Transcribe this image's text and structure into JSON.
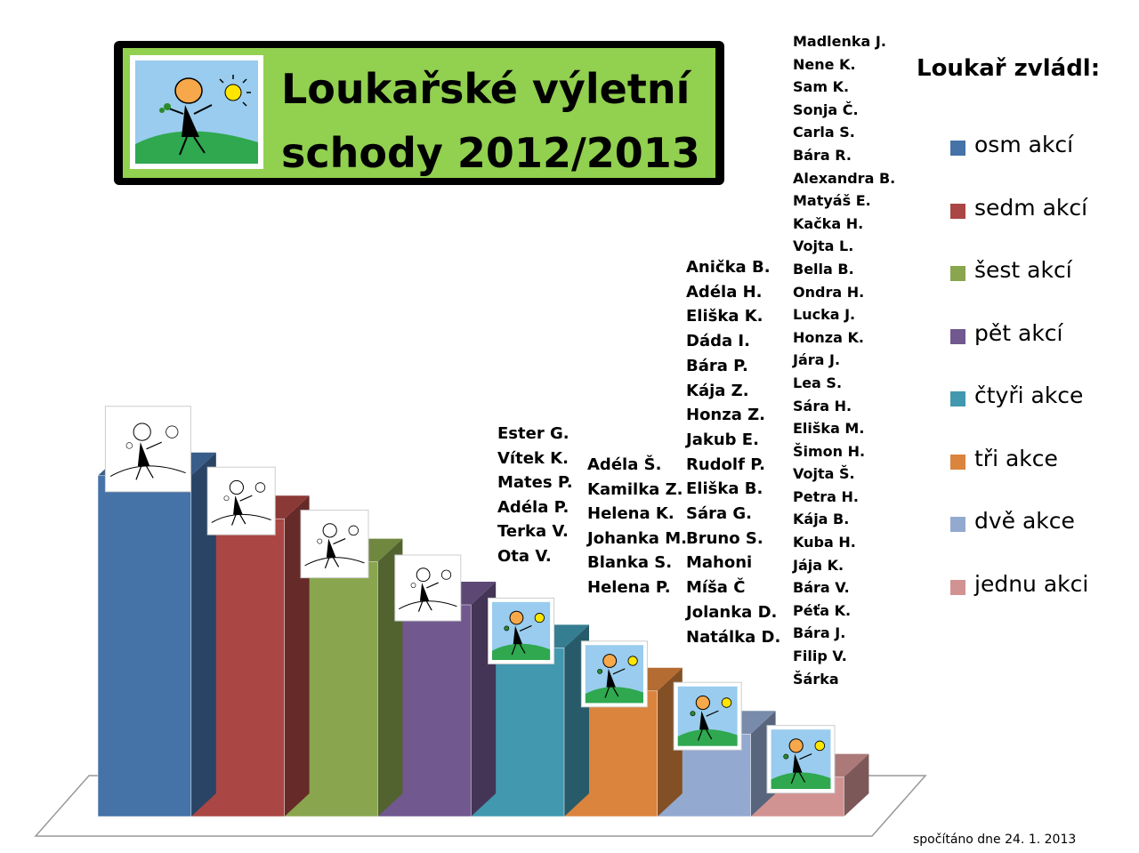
{
  "header": {
    "title_line1": "Loukařské výletní",
    "title_line2": "schody 2012/2013"
  },
  "legend": {
    "title": "Loukař zvládl:",
    "items": [
      {
        "label": "osm akcí",
        "color": "#4572a7"
      },
      {
        "label": "sedm akcí",
        "color": "#aa4643"
      },
      {
        "label": "šest akcí",
        "color": "#89a54e"
      },
      {
        "label": "pět akcí",
        "color": "#71588f"
      },
      {
        "label": "čtyři akce",
        "color": "#4198af"
      },
      {
        "label": "tři akce",
        "color": "#db843d"
      },
      {
        "label": "dvě akce",
        "color": "#93a9cf"
      },
      {
        "label": "jednu akci",
        "color": "#d19392"
      }
    ]
  },
  "footnote": "spočítáno dne 24. 1. 2013",
  "chart_data": {
    "type": "bar",
    "categories": [
      "osm akcí",
      "sedm akcí",
      "šest akcí",
      "pět akcí",
      "čtyři akce",
      "tři akce",
      "dvě akce",
      "jednu akci"
    ],
    "values": [
      8,
      7,
      6,
      5,
      4,
      3,
      2,
      1
    ],
    "colors": [
      "#4572a7",
      "#aa4643",
      "#89a54e",
      "#71588f",
      "#4198af",
      "#db843d",
      "#93a9cf",
      "#d19392"
    ],
    "chart_style": "3d-stairs",
    "icon_style": [
      "outline",
      "outline",
      "outline",
      "outline",
      "color",
      "color",
      "color",
      "color"
    ],
    "legend_position": "right"
  },
  "names": {
    "ctyri_akce": [
      "Ester G.",
      "Vítek K.",
      "Mates P.",
      "Adéla P.",
      "Terka V.",
      "Ota V."
    ],
    "tri_akce": [
      "Adéla Š.",
      "Kamilka Z.",
      "Helena K.",
      "Johanka M.",
      "Blanka S.",
      "Helena P."
    ],
    "dve_akce": [
      "Anička B.",
      "Adéla H.",
      "Eliška K.",
      "Dáda I.",
      "Bára P.",
      "Kája Z.",
      "Honza Z.",
      "Jakub E.",
      "Rudolf P.",
      "Eliška B.",
      "Sára G.",
      "Bruno S.",
      "Mahoni",
      "Míša Č",
      "Jolanka D.",
      "Natálka D."
    ],
    "jednu_akci": [
      "Madlenka J.",
      "Nene K.",
      "Sam K.",
      "Sonja Č.",
      "Carla S.",
      "Bára R.",
      "Alexandra B.",
      "Matyáš E.",
      "Kačka H.",
      "Vojta L.",
      "Bella B.",
      "Ondra H.",
      "Lucka J.",
      "Honza K.",
      "Jára J.",
      "Lea S.",
      "Sára H.",
      "Eliška M.",
      "Šimon H.",
      "Vojta Š.",
      "Petra H.",
      "Kája B.",
      "Kuba H.",
      "Jája K.",
      "Bára V.",
      "Péťa K.",
      "Bára J.",
      "Filip V.",
      "Šárka"
    ]
  }
}
